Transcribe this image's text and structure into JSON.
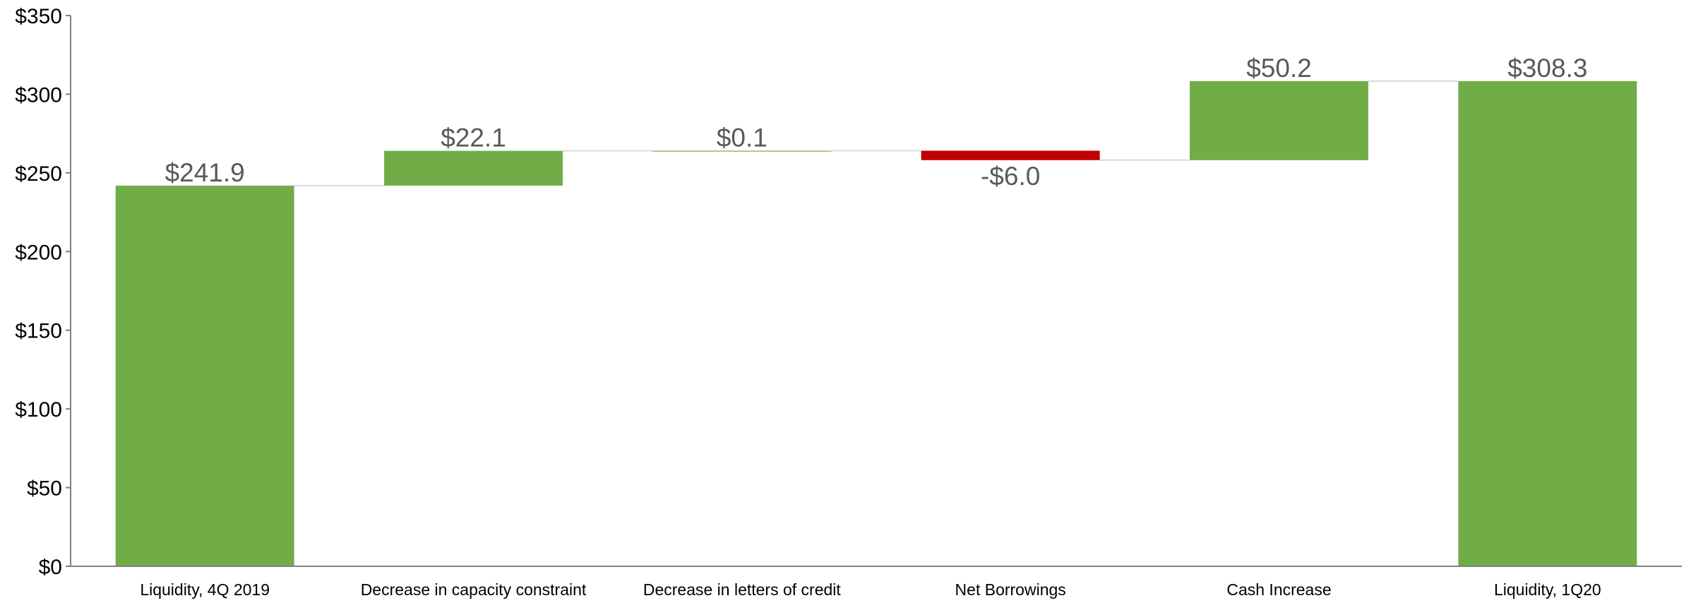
{
  "chart_data": {
    "type": "waterfall",
    "title": "",
    "xlabel": "",
    "ylabel": "",
    "ylim": [
      0,
      350
    ],
    "yticks": [
      0,
      50,
      100,
      150,
      200,
      250,
      300,
      350
    ],
    "ytick_labels": [
      "$0",
      "$50",
      "$100",
      "$150",
      "$200",
      "$250",
      "$300",
      "$350"
    ],
    "grid": false,
    "legend": "none",
    "categories": [
      "Liquidity, 4Q 2019",
      "Decrease in capacity constraint",
      "Decrease in letters of credit",
      "Net Borrowings",
      "Cash Increase",
      "Liquidity, 1Q20"
    ],
    "values": [
      241.9,
      22.1,
      0.1,
      -6.0,
      50.2,
      308.3
    ],
    "bar_kinds": [
      "total",
      "delta",
      "delta",
      "delta",
      "delta",
      "total"
    ],
    "data_labels": [
      "$241.9",
      "$22.1",
      "$0.1",
      "-$6.0",
      "$50.2",
      "$308.3"
    ],
    "colors": {
      "positive": "#70AD47",
      "negative": "#C00000",
      "connector": "#D9D9D9",
      "axis": "#808080",
      "label": "#595959"
    }
  }
}
